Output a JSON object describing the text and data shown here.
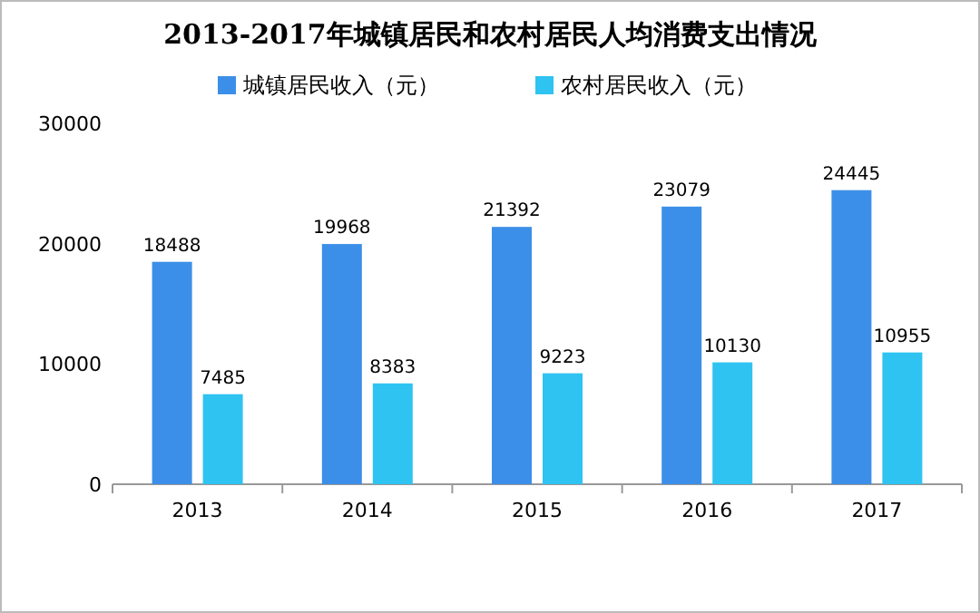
{
  "chart_data": {
    "type": "bar",
    "title": "2013-2017年城镇居民和农村居民人均消费支出情况",
    "categories": [
      "2013",
      "2014",
      "2015",
      "2016",
      "2017"
    ],
    "series": [
      {
        "name": "城镇居民收入（元）",
        "color": "#3c8fe8",
        "values": [
          18488,
          19968,
          21392,
          23079,
          24445
        ]
      },
      {
        "name": "农村居民收入（元）",
        "color": "#2fc3f2",
        "values": [
          7485,
          8383,
          9223,
          10130,
          10955
        ]
      }
    ],
    "ylim": [
      0,
      30000
    ],
    "yticks": [
      0,
      10000,
      20000,
      30000
    ],
    "data_labels": true,
    "legend": "top",
    "grid": false
  }
}
